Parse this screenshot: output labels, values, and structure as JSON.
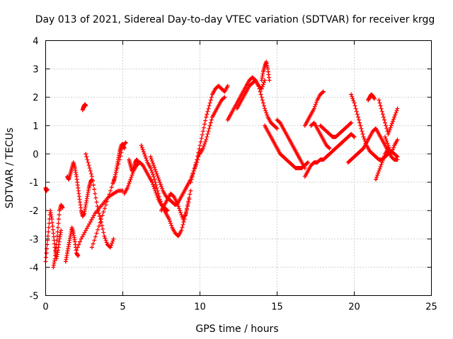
{
  "chart_data": {
    "type": "scatter",
    "title": "Day 013 of 2021, Sidereal Day-to-day VTEC variation (SDTVAR) for receiver krgg",
    "xlabel": "GPS time / hours",
    "ylabel": "SDTVAR / TECUs",
    "xlim": [
      0,
      25
    ],
    "ylim": [
      -5,
      4
    ],
    "xticks": [
      0,
      5,
      10,
      15,
      20,
      25
    ],
    "yticks": [
      -5,
      -4,
      -3,
      -2,
      -1,
      0,
      1,
      2,
      3,
      4
    ],
    "grid": true,
    "marker": "+",
    "color": "#ff0000",
    "series": [
      {
        "name": "trace-a",
        "x": [
          0.0,
          0.1,
          0.2,
          0.3,
          0.4,
          0.5,
          0.6,
          0.7,
          0.8,
          0.9,
          1.0
        ],
        "y": [
          -3.8,
          -3.2,
          -2.6,
          -2.0,
          -2.3,
          -2.8,
          -3.3,
          -3.7,
          -3.4,
          -3.0,
          -2.7
        ]
      },
      {
        "name": "trace-b",
        "x": [
          0.0,
          0.05,
          0.1
        ],
        "y": [
          -1.2,
          -1.3,
          -1.25
        ]
      },
      {
        "name": "trace-c",
        "x": [
          0.5,
          0.6,
          0.7,
          0.8,
          0.9,
          1.0,
          1.1
        ],
        "y": [
          -4.0,
          -3.7,
          -3.2,
          -2.6,
          -2.0,
          -1.8,
          -1.9
        ]
      },
      {
        "name": "trace-d",
        "x": [
          1.3,
          1.4,
          1.5,
          1.6,
          1.7,
          1.8,
          1.9,
          2.0,
          2.1
        ],
        "y": [
          -3.8,
          -3.5,
          -3.2,
          -2.9,
          -2.6,
          -2.8,
          -3.1,
          -3.5,
          -3.6
        ]
      },
      {
        "name": "trace-e",
        "x": [
          1.4,
          1.5,
          1.6,
          1.7,
          1.8,
          1.9,
          2.0,
          2.1,
          2.2,
          2.3,
          2.4,
          2.5,
          2.6,
          2.7,
          2.8,
          2.9,
          3.0
        ],
        "y": [
          -0.8,
          -0.9,
          -0.7,
          -0.5,
          -0.3,
          -0.5,
          -0.8,
          -1.2,
          -1.6,
          -2.0,
          -2.2,
          -2.1,
          -1.8,
          -1.5,
          -1.2,
          -1.0,
          -0.9
        ]
      },
      {
        "name": "trace-f",
        "x": [
          2.4,
          2.45,
          2.5,
          2.55,
          2.6
        ],
        "y": [
          1.55,
          1.65,
          1.7,
          1.75,
          1.7
        ]
      },
      {
        "name": "trace-g",
        "x": [
          2.6,
          2.8,
          3.0,
          3.2,
          3.4,
          3.6,
          3.8,
          4.0,
          4.2,
          4.4
        ],
        "y": [
          0.0,
          -0.4,
          -0.8,
          -1.4,
          -2.0,
          -2.4,
          -2.9,
          -3.2,
          -3.3,
          -3.0
        ]
      },
      {
        "name": "trace-h",
        "x": [
          2.0,
          2.3,
          2.6,
          2.9,
          3.2,
          3.5,
          3.8,
          4.1,
          4.4,
          4.7,
          5.0
        ],
        "y": [
          -3.4,
          -3.0,
          -2.7,
          -2.4,
          -2.1,
          -1.9,
          -1.7,
          -1.5,
          -1.4,
          -1.3,
          -1.3
        ]
      },
      {
        "name": "trace-i",
        "x": [
          3.0,
          3.3,
          3.6,
          3.9,
          4.2,
          4.5,
          4.8,
          5.0,
          5.2
        ],
        "y": [
          -3.3,
          -2.8,
          -2.3,
          -1.8,
          -1.3,
          -0.8,
          -0.2,
          0.3,
          0.4
        ]
      },
      {
        "name": "trace-j",
        "x": [
          4.4,
          4.5,
          4.6,
          4.7,
          4.8,
          4.9,
          5.0,
          5.1
        ],
        "y": [
          -1.0,
          -0.8,
          -0.5,
          -0.2,
          0.1,
          0.3,
          0.35,
          0.2
        ]
      },
      {
        "name": "trace-k",
        "x": [
          5.1,
          5.3,
          5.5,
          5.7,
          5.9,
          6.1,
          6.3,
          6.5,
          6.7,
          6.9,
          7.1,
          7.3,
          7.5,
          7.7,
          7.9
        ],
        "y": [
          -1.4,
          -1.2,
          -0.9,
          -0.6,
          -0.4,
          -0.3,
          -0.4,
          -0.6,
          -0.8,
          -1.0,
          -1.3,
          -1.6,
          -1.8,
          -1.9,
          -2.0
        ]
      },
      {
        "name": "trace-l",
        "x": [
          5.4,
          5.5,
          5.6,
          5.7,
          5.8,
          5.9,
          6.0
        ],
        "y": [
          -0.2,
          -0.4,
          -0.6,
          -0.5,
          -0.3,
          -0.2,
          -0.3
        ]
      },
      {
        "name": "trace-m",
        "x": [
          6.2,
          6.4,
          6.6,
          6.8,
          7.0,
          7.2,
          7.4,
          7.6,
          7.8,
          8.0,
          8.2,
          8.4,
          8.6,
          8.8,
          9.0,
          9.2,
          9.4
        ],
        "y": [
          0.3,
          0.0,
          -0.3,
          -0.5,
          -0.8,
          -1.2,
          -1.6,
          -1.9,
          -2.1,
          -2.3,
          -2.6,
          -2.8,
          -2.9,
          -2.7,
          -2.3,
          -1.8,
          -1.3
        ]
      },
      {
        "name": "trace-n",
        "x": [
          6.8,
          7.0,
          7.2,
          7.4,
          7.6,
          7.8,
          8.0,
          8.2,
          8.4,
          8.6,
          8.8,
          9.0,
          9.2,
          9.4,
          9.6,
          9.8,
          10.0
        ],
        "y": [
          -0.1,
          -0.4,
          -0.7,
          -1.0,
          -1.3,
          -1.5,
          -1.6,
          -1.7,
          -1.8,
          -1.7,
          -1.5,
          -1.3,
          -1.1,
          -0.9,
          -0.6,
          -0.3,
          0.1
        ]
      },
      {
        "name": "trace-o",
        "x": [
          7.5,
          7.7,
          7.9,
          8.1,
          8.3,
          8.5,
          8.7,
          8.9,
          9.1,
          9.3
        ],
        "y": [
          -2.0,
          -1.8,
          -1.6,
          -1.4,
          -1.5,
          -1.7,
          -2.0,
          -2.3,
          -2.1,
          -1.6
        ]
      },
      {
        "name": "trace-p",
        "x": [
          9.4,
          9.6,
          9.8,
          10.0,
          10.2,
          10.4,
          10.6,
          10.8,
          11.0,
          11.2,
          11.4,
          11.6,
          11.8
        ],
        "y": [
          -1.0,
          -0.6,
          -0.2,
          0.3,
          0.8,
          1.3,
          1.7,
          2.1,
          2.3,
          2.4,
          2.3,
          2.2,
          2.4
        ]
      },
      {
        "name": "trace-q",
        "x": [
          10.0,
          10.2,
          10.4,
          10.6,
          10.8,
          11.0,
          11.2,
          11.4,
          11.6
        ],
        "y": [
          0.0,
          0.2,
          0.5,
          0.9,
          1.3,
          1.5,
          1.7,
          1.9,
          2.0
        ]
      },
      {
        "name": "trace-r",
        "x": [
          11.8,
          12.0,
          12.2,
          12.4,
          12.6,
          12.8,
          13.0,
          13.2,
          13.4,
          13.6,
          13.8,
          14.0,
          14.2
        ],
        "y": [
          1.2,
          1.4,
          1.6,
          1.8,
          2.0,
          2.2,
          2.4,
          2.6,
          2.7,
          2.6,
          2.4,
          2.3,
          2.6
        ]
      },
      {
        "name": "trace-s",
        "x": [
          12.4,
          12.6,
          12.8,
          13.0,
          13.2,
          13.4,
          13.6,
          13.8,
          14.0,
          14.2,
          14.4,
          14.6,
          14.8,
          15.0
        ],
        "y": [
          1.6,
          1.8,
          2.0,
          2.2,
          2.4,
          2.5,
          2.6,
          2.4,
          2.0,
          1.6,
          1.3,
          1.1,
          1.0,
          0.9
        ]
      },
      {
        "name": "trace-t",
        "x": [
          14.0,
          14.1,
          14.2,
          14.3,
          14.4,
          14.5
        ],
        "y": [
          2.6,
          2.9,
          3.1,
          3.25,
          3.0,
          2.6
        ]
      },
      {
        "name": "trace-u",
        "x": [
          14.2,
          14.4,
          14.6,
          14.8,
          15.0,
          15.2,
          15.4,
          15.6,
          15.8,
          16.0,
          16.2,
          16.4,
          16.6,
          16.8,
          17.0
        ],
        "y": [
          1.0,
          0.8,
          0.6,
          0.4,
          0.2,
          0.0,
          -0.1,
          -0.2,
          -0.3,
          -0.4,
          -0.5,
          -0.5,
          -0.5,
          -0.4,
          -0.3
        ]
      },
      {
        "name": "trace-v",
        "x": [
          15.0,
          15.2,
          15.4,
          15.6,
          15.8,
          16.0,
          16.2,
          16.4,
          16.6,
          16.8
        ],
        "y": [
          1.2,
          1.1,
          0.9,
          0.7,
          0.5,
          0.3,
          0.1,
          -0.1,
          -0.3,
          -0.5
        ]
      },
      {
        "name": "trace-w",
        "x": [
          16.8,
          17.0,
          17.2,
          17.4,
          17.6,
          17.8,
          18.0,
          18.2,
          18.4,
          18.6,
          18.8,
          19.0,
          19.2,
          19.4,
          19.6,
          19.8,
          20.0
        ],
        "y": [
          -0.8,
          -0.6,
          -0.4,
          -0.3,
          -0.3,
          -0.2,
          -0.2,
          -0.1,
          0.0,
          0.1,
          0.2,
          0.3,
          0.4,
          0.5,
          0.6,
          0.7,
          0.6
        ]
      },
      {
        "name": "trace-x",
        "x": [
          16.8,
          17.0,
          17.2,
          17.4,
          17.6,
          17.8,
          18.0
        ],
        "y": [
          1.0,
          1.2,
          1.4,
          1.6,
          1.9,
          2.1,
          2.2
        ]
      },
      {
        "name": "trace-y",
        "x": [
          17.2,
          17.4,
          17.6,
          17.8,
          18.0,
          18.2,
          18.4
        ],
        "y": [
          1.0,
          1.1,
          0.9,
          0.7,
          0.5,
          0.3,
          0.2
        ]
      },
      {
        "name": "trace-z",
        "x": [
          17.8,
          18.0,
          18.2,
          18.4,
          18.6,
          18.8,
          19.0,
          19.2,
          19.4,
          19.6,
          19.8
        ],
        "y": [
          1.0,
          0.9,
          0.8,
          0.7,
          0.6,
          0.6,
          0.7,
          0.8,
          0.9,
          1.0,
          1.1
        ]
      },
      {
        "name": "trace-aa",
        "x": [
          19.8,
          20.0,
          20.2,
          20.4,
          20.6,
          20.8,
          21.0,
          21.2,
          21.4,
          21.6,
          21.8,
          22.0,
          22.2,
          22.4,
          22.6,
          22.8
        ],
        "y": [
          2.1,
          1.8,
          1.4,
          1.0,
          0.6,
          0.3,
          0.1,
          0.0,
          -0.1,
          -0.2,
          -0.2,
          -0.1,
          0.0,
          0.1,
          0.0,
          -0.1
        ]
      },
      {
        "name": "trace-ab",
        "x": [
          19.6,
          19.8,
          20.0,
          20.2,
          20.4,
          20.6,
          20.8,
          21.0,
          21.2,
          21.4,
          21.6,
          21.8,
          22.0,
          22.2,
          22.4,
          22.6,
          22.8
        ],
        "y": [
          -0.3,
          -0.2,
          -0.1,
          0.0,
          0.1,
          0.2,
          0.4,
          0.6,
          0.8,
          0.9,
          0.7,
          0.5,
          0.3,
          0.1,
          -0.1,
          -0.2,
          -0.2
        ]
      },
      {
        "name": "trace-ac",
        "x": [
          20.9,
          21.0,
          21.1,
          21.2,
          21.3
        ],
        "y": [
          1.9,
          2.0,
          2.1,
          2.05,
          1.95
        ]
      },
      {
        "name": "trace-ad",
        "x": [
          21.6,
          21.8,
          22.0,
          22.2,
          22.4,
          22.6,
          22.8
        ],
        "y": [
          1.9,
          1.5,
          1.1,
          0.7,
          1.0,
          1.3,
          1.6
        ]
      },
      {
        "name": "trace-ae",
        "x": [
          21.4,
          21.6,
          21.8,
          22.0,
          22.2
        ],
        "y": [
          -0.9,
          -0.6,
          -0.3,
          0.0,
          0.2
        ]
      },
      {
        "name": "trace-af",
        "x": [
          22.0,
          22.2,
          22.4,
          22.6,
          22.8
        ],
        "y": [
          0.6,
          0.3,
          0.0,
          0.3,
          0.5
        ]
      }
    ]
  }
}
